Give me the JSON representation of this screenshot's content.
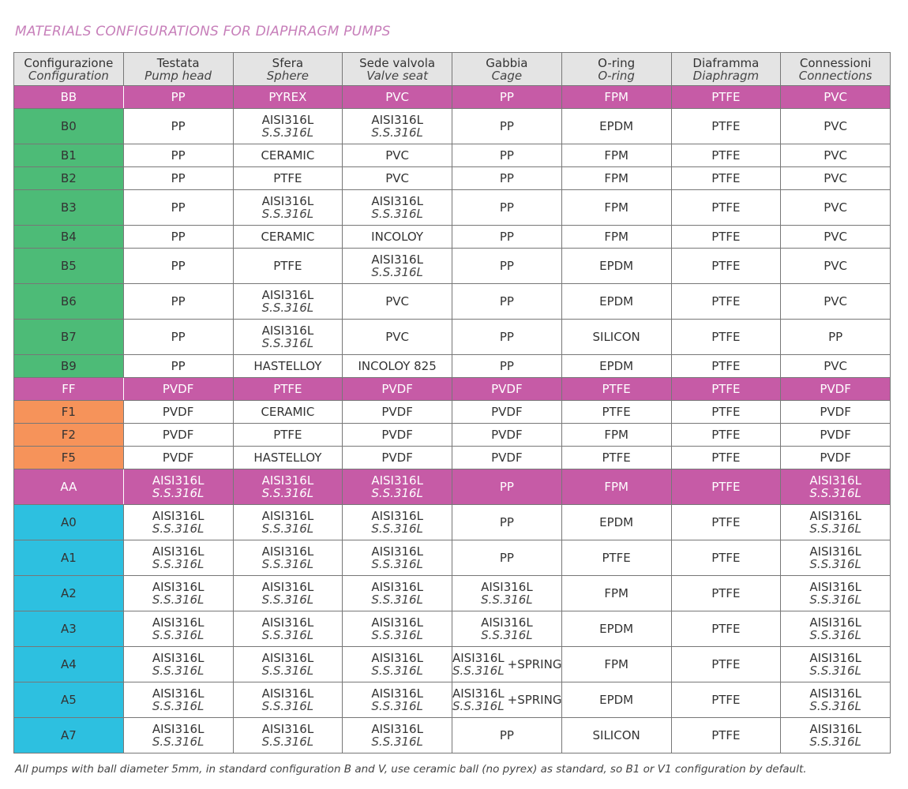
{
  "title": "MATERIALS CONFIGURATIONS FOR DIAPHRAGM PUMPS",
  "colors": {
    "pink": "#c65ba6",
    "green": "#4dbb77",
    "orange": "#f6935a",
    "blue": "#2dc0e0",
    "header": "#e4e4e4"
  },
  "headers": [
    {
      "it": "Configurazione",
      "en": "Configuration"
    },
    {
      "it": "Testata",
      "en": "Pump head"
    },
    {
      "it": "Sfera",
      "en": "Sphere"
    },
    {
      "it": "Sede valvola",
      "en": "Valve seat"
    },
    {
      "it": "Gabbia",
      "en": "Cage"
    },
    {
      "it": "O-ring",
      "en": "O-ring"
    },
    {
      "it": "Diaframma",
      "en": "Diaphragm"
    },
    {
      "it": "Connessioni",
      "en": "Connections"
    }
  ],
  "rows": [
    {
      "group": "pink",
      "config": "BB",
      "cells": [
        "PP",
        "PYREX",
        "PVC",
        "PP",
        "FPM",
        "PTFE",
        "PVC"
      ]
    },
    {
      "group": "green",
      "config": "B0",
      "cells": [
        "PP",
        {
          "l1": "AISI316L",
          "l2": "S.S.316L"
        },
        {
          "l1": "AISI316L",
          "l2": "S.S.316L"
        },
        "PP",
        "EPDM",
        "PTFE",
        "PVC"
      ]
    },
    {
      "group": "green",
      "config": "B1",
      "cells": [
        "PP",
        "CERAMIC",
        "PVC",
        "PP",
        "FPM",
        "PTFE",
        "PVC"
      ]
    },
    {
      "group": "green",
      "config": "B2",
      "cells": [
        "PP",
        "PTFE",
        "PVC",
        "PP",
        "FPM",
        "PTFE",
        "PVC"
      ]
    },
    {
      "group": "green",
      "config": "B3",
      "cells": [
        "PP",
        {
          "l1": "AISI316L",
          "l2": "S.S.316L"
        },
        {
          "l1": "AISI316L",
          "l2": "S.S.316L"
        },
        "PP",
        "FPM",
        "PTFE",
        "PVC"
      ]
    },
    {
      "group": "green",
      "config": "B4",
      "cells": [
        "PP",
        "CERAMIC",
        "INCOLOY",
        "PP",
        "FPM",
        "PTFE",
        "PVC"
      ]
    },
    {
      "group": "green",
      "config": "B5",
      "cells": [
        "PP",
        "PTFE",
        {
          "l1": "AISI316L",
          "l2": "S.S.316L"
        },
        "PP",
        "EPDM",
        "PTFE",
        "PVC"
      ]
    },
    {
      "group": "green",
      "config": "B6",
      "cells": [
        "PP",
        {
          "l1": "AISI316L",
          "l2": "S.S.316L"
        },
        "PVC",
        "PP",
        "EPDM",
        "PTFE",
        "PVC"
      ]
    },
    {
      "group": "green",
      "config": "B7",
      "cells": [
        "PP",
        {
          "l1": "AISI316L",
          "l2": "S.S.316L"
        },
        "PVC",
        "PP",
        "SILICON",
        "PTFE",
        "PP"
      ]
    },
    {
      "group": "green",
      "config": "B9",
      "cells": [
        "PP",
        "HASTELLOY",
        "INCOLOY 825",
        "PP",
        "EPDM",
        "PTFE",
        "PVC"
      ]
    },
    {
      "group": "pink",
      "config": "FF",
      "cells": [
        "PVDF",
        "PTFE",
        "PVDF",
        "PVDF",
        "PTFE",
        "PTFE",
        "PVDF"
      ]
    },
    {
      "group": "orange",
      "config": "F1",
      "cells": [
        "PVDF",
        "CERAMIC",
        "PVDF",
        "PVDF",
        "PTFE",
        "PTFE",
        "PVDF"
      ]
    },
    {
      "group": "orange",
      "config": "F2",
      "cells": [
        "PVDF",
        "PTFE",
        "PVDF",
        "PVDF",
        "FPM",
        "PTFE",
        "PVDF"
      ]
    },
    {
      "group": "orange",
      "config": "F5",
      "cells": [
        "PVDF",
        "HASTELLOY",
        "PVDF",
        "PVDF",
        "PTFE",
        "PTFE",
        "PVDF"
      ]
    },
    {
      "group": "pink",
      "config": "AA",
      "cells": [
        {
          "l1": "AISI316L",
          "l2": "S.S.316L"
        },
        {
          "l1": "AISI316L",
          "l2": "S.S.316L"
        },
        {
          "l1": "AISI316L",
          "l2": "S.S.316L"
        },
        "PP",
        "FPM",
        "PTFE",
        {
          "l1": "AISI316L",
          "l2": "S.S.316L"
        }
      ]
    },
    {
      "group": "blue",
      "config": "A0",
      "cells": [
        {
          "l1": "AISI316L",
          "l2": "S.S.316L"
        },
        {
          "l1": "AISI316L",
          "l2": "S.S.316L"
        },
        {
          "l1": "AISI316L",
          "l2": "S.S.316L"
        },
        "PP",
        "EPDM",
        "PTFE",
        {
          "l1": "AISI316L",
          "l2": "S.S.316L"
        }
      ]
    },
    {
      "group": "blue",
      "config": "A1",
      "cells": [
        {
          "l1": "AISI316L",
          "l2": "S.S.316L"
        },
        {
          "l1": "AISI316L",
          "l2": "S.S.316L"
        },
        {
          "l1": "AISI316L",
          "l2": "S.S.316L"
        },
        "PP",
        "PTFE",
        "PTFE",
        {
          "l1": "AISI316L",
          "l2": "S.S.316L"
        }
      ]
    },
    {
      "group": "blue",
      "config": "A2",
      "cells": [
        {
          "l1": "AISI316L",
          "l2": "S.S.316L"
        },
        {
          "l1": "AISI316L",
          "l2": "S.S.316L"
        },
        {
          "l1": "AISI316L",
          "l2": "S.S.316L"
        },
        {
          "l1": "AISI316L",
          "l2": "S.S.316L"
        },
        "FPM",
        "PTFE",
        {
          "l1": "AISI316L",
          "l2": "S.S.316L"
        }
      ]
    },
    {
      "group": "blue",
      "config": "A3",
      "cells": [
        {
          "l1": "AISI316L",
          "l2": "S.S.316L"
        },
        {
          "l1": "AISI316L",
          "l2": "S.S.316L"
        },
        {
          "l1": "AISI316L",
          "l2": "S.S.316L"
        },
        {
          "l1": "AISI316L",
          "l2": "S.S.316L"
        },
        "EPDM",
        "PTFE",
        {
          "l1": "AISI316L",
          "l2": "S.S.316L"
        }
      ]
    },
    {
      "group": "blue",
      "config": "A4",
      "cells": [
        {
          "l1": "AISI316L",
          "l2": "S.S.316L"
        },
        {
          "l1": "AISI316L",
          "l2": "S.S.316L"
        },
        {
          "l1": "AISI316L",
          "l2": "S.S.316L"
        },
        {
          "l1": "AISI316L",
          "l2": "S.S.316L",
          "extra": "+SPRING"
        },
        "FPM",
        "PTFE",
        {
          "l1": "AISI316L",
          "l2": "S.S.316L"
        }
      ]
    },
    {
      "group": "blue",
      "config": "A5",
      "cells": [
        {
          "l1": "AISI316L",
          "l2": "S.S.316L"
        },
        {
          "l1": "AISI316L",
          "l2": "S.S.316L"
        },
        {
          "l1": "AISI316L",
          "l2": "S.S.316L"
        },
        {
          "l1": "AISI316L",
          "l2": "S.S.316L",
          "extra": "+SPRING"
        },
        "EPDM",
        "PTFE",
        {
          "l1": "AISI316L",
          "l2": "S.S.316L"
        }
      ]
    },
    {
      "group": "blue",
      "config": "A7",
      "cells": [
        {
          "l1": "AISI316L",
          "l2": "S.S.316L"
        },
        {
          "l1": "AISI316L",
          "l2": "S.S.316L"
        },
        {
          "l1": "AISI316L",
          "l2": "S.S.316L"
        },
        "PP",
        "SILICON",
        "PTFE",
        {
          "l1": "AISI316L",
          "l2": "S.S.316L"
        }
      ]
    }
  ],
  "footnote": "All pumps with ball diameter 5mm, in standard configuration B and V, use ceramic ball (no pyrex) as standard, so B1 or V1 configuration by default."
}
